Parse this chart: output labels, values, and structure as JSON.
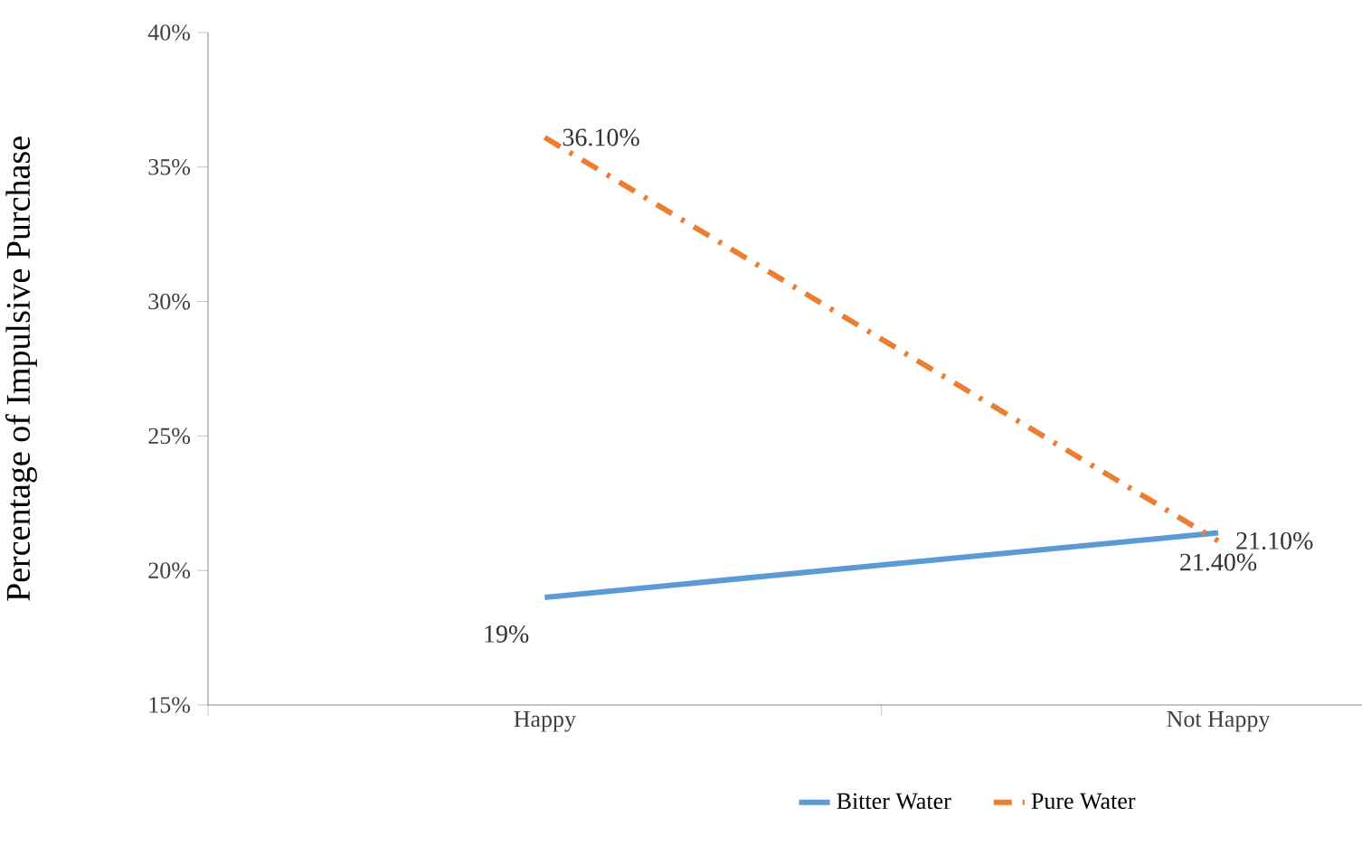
{
  "chart_data": {
    "type": "line",
    "ylabel": "Percentage of Impulsive Purchase",
    "categories": [
      "Happy",
      "Not Happy"
    ],
    "series": [
      {
        "name": "Bitter  Water",
        "color": "#5b9bd5",
        "values": [
          19,
          21.4
        ],
        "value_labels": [
          "19%",
          "21.40%"
        ],
        "line_style": "solid"
      },
      {
        "name": "Pure Water",
        "color": "#ed7d31",
        "values": [
          36.1,
          21.1
        ],
        "value_labels": [
          "36.10%",
          "21.10%"
        ],
        "line_style": "dashed"
      }
    ],
    "ylim": [
      15,
      40
    ],
    "yticks": [
      {
        "value": 15,
        "label": "15%"
      },
      {
        "value": 20,
        "label": "20%"
      },
      {
        "value": 25,
        "label": "25%"
      },
      {
        "value": 30,
        "label": "30%"
      },
      {
        "value": 35,
        "label": "35%"
      },
      {
        "value": 40,
        "label": "40%"
      }
    ],
    "grid": false,
    "legend": "bottom",
    "marker": "none"
  }
}
